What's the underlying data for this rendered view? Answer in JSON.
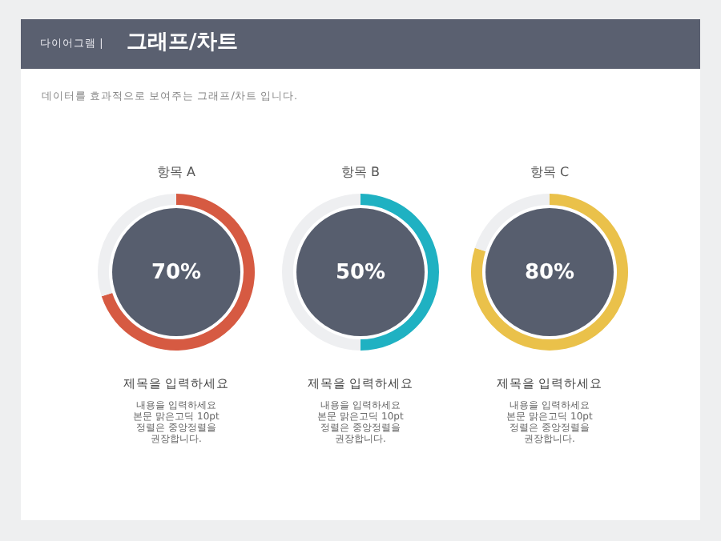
{
  "chart_data": [
    {
      "type": "other",
      "title": "그래프/차트",
      "subtitle": "데이터를 효과적으로 보여주는 그래프/차트 입니다.",
      "annotations": [
        "다이어그램 |"
      ]
    },
    {
      "type": "donut",
      "title": "항목 A",
      "categories": [
        null,
        null
      ],
      "values": [
        70,
        30
      ],
      "colors": [
        "#d65a42",
        "#eeeff1"
      ],
      "value_labels": [
        "70%",
        null
      ],
      "annotations": [
        "제목을 입력하세요",
        "내용을 입력하세요\n본문 맑은고딕 10pt\n정렬은 중앙정렬을\n권장합니다."
      ]
    },
    {
      "type": "donut",
      "title": "항목 B",
      "categories": [
        null,
        null
      ],
      "values": [
        50,
        50
      ],
      "colors": [
        "#1fb1c2",
        "#eeeff1"
      ],
      "value_labels": [
        "50%",
        null
      ],
      "annotations": [
        "제목을 입력하세요",
        "내용을 입력하세요\n본문 맑은고딕 10pt\n정렬은 중앙정렬을\n권장합니다."
      ]
    },
    {
      "type": "donut",
      "title": "항목 C",
      "categories": [
        null,
        null
      ],
      "values": [
        80,
        20
      ],
      "colors": [
        "#eac14a",
        "#eeeff1"
      ],
      "value_labels": [
        "80%",
        null
      ],
      "annotations": [
        "제목을 입력하세요",
        "내용을 입력하세요\n본문 맑은고딕 10pt\n정렬은 중앙정렬을\n권장합니다."
      ]
    }
  ]
}
